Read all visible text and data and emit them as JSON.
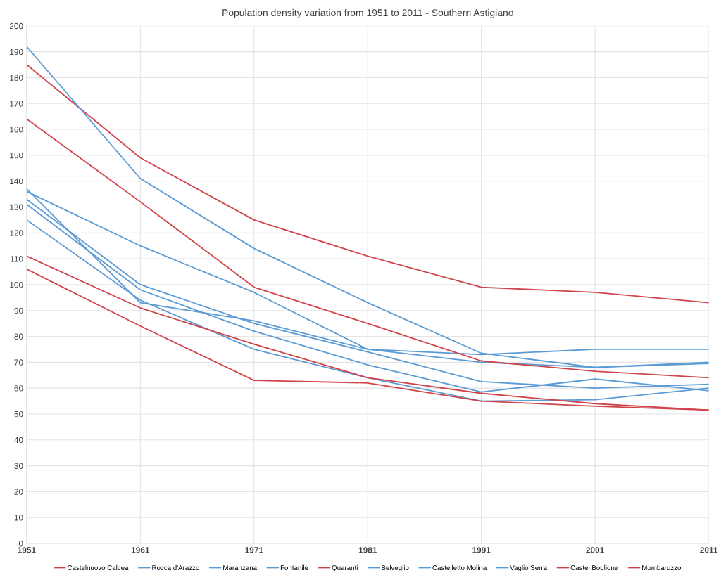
{
  "chart_data": {
    "type": "line",
    "title": "Population density variation from 1951 to 2011 - Southern Astigiano",
    "categories": [
      "1951",
      "1961",
      "1971",
      "1981",
      "1991",
      "2001",
      "2011"
    ],
    "ylim": [
      0,
      200
    ],
    "yticks": [
      0,
      10,
      20,
      30,
      40,
      50,
      60,
      70,
      80,
      90,
      100,
      110,
      120,
      130,
      140,
      150,
      160,
      170,
      180,
      190,
      200
    ],
    "grid": true,
    "legend": "bottom",
    "marker": "none",
    "line_style": "solid",
    "series": [
      {
        "name": "Castelnuovo Calcea",
        "color": "#d0454c",
        "values": [
          185,
          149,
          125,
          111,
          99,
          97,
          93
        ]
      },
      {
        "name": "Rocca d'Arazzo",
        "color": "#5b9bd5",
        "values": [
          192,
          141,
          114,
          93,
          73.5,
          68,
          69.5
        ]
      },
      {
        "name": "Maranzana",
        "color": "#5b9bd5",
        "values": [
          136,
          115,
          97,
          75,
          73,
          75,
          75
        ]
      },
      {
        "name": "Fontanile",
        "color": "#5b9bd5",
        "values": [
          137,
          93,
          86,
          75,
          70,
          68,
          70
        ]
      },
      {
        "name": "Quaranti",
        "color": "#d0454c",
        "values": [
          164,
          132,
          99,
          85,
          70.5,
          66.5,
          64
        ]
      },
      {
        "name": "Belveglio",
        "color": "#5b9bd5",
        "values": [
          133,
          100,
          85,
          74,
          62.5,
          60,
          61.5
        ]
      },
      {
        "name": "Castelletto Molina",
        "color": "#5b9bd5",
        "values": [
          131,
          98,
          82,
          69,
          58.5,
          63.5,
          59
        ]
      },
      {
        "name": "Vaglio Serra",
        "color": "#5b9bd5",
        "values": [
          125,
          94,
          75,
          64,
          55,
          55.5,
          60
        ]
      },
      {
        "name": "Castel Boglione",
        "color": "#d0454c",
        "values": [
          111,
          91,
          77,
          64,
          58,
          54,
          51.5
        ]
      },
      {
        "name": "Mombaruzzo",
        "color": "#d0454c",
        "values": [
          106,
          84,
          63,
          62,
          55,
          53,
          51.5
        ]
      }
    ]
  }
}
